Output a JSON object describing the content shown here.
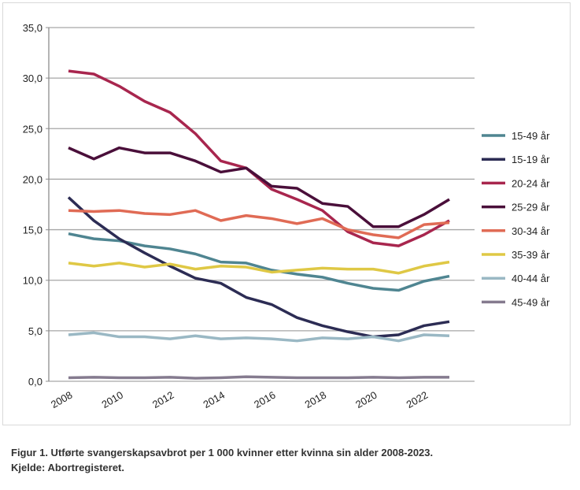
{
  "chart_data": {
    "type": "line",
    "title": "",
    "xlabel": "",
    "ylabel": "",
    "x": [
      2008,
      2009,
      2010,
      2011,
      2012,
      2013,
      2014,
      2015,
      2016,
      2017,
      2018,
      2019,
      2020,
      2021,
      2022,
      2023
    ],
    "x_ticks": [
      "2008",
      "2010",
      "2012",
      "2014",
      "2016",
      "2018",
      "2020",
      "2022"
    ],
    "ylim": [
      0,
      35
    ],
    "y_ticks": [
      "0,0",
      "5,0",
      "10,0",
      "15,0",
      "20,0",
      "25,0",
      "30,0",
      "35,0"
    ],
    "grid": "horizontal",
    "legend_position": "right",
    "series": [
      {
        "name": "15-49 år",
        "color": "#4f8591",
        "values": [
          14.6,
          14.1,
          13.9,
          13.4,
          13.1,
          12.6,
          11.8,
          11.7,
          11.0,
          10.6,
          10.3,
          9.7,
          9.2,
          9.0,
          9.9,
          10.4
        ]
      },
      {
        "name": "15-19 år",
        "color": "#2c2c54",
        "values": [
          18.2,
          15.9,
          14.1,
          12.7,
          11.4,
          10.2,
          9.7,
          8.3,
          7.6,
          6.3,
          5.5,
          4.9,
          4.4,
          4.6,
          5.5,
          5.9
        ]
      },
      {
        "name": "20-24 år",
        "color": "#a8264e",
        "values": [
          30.7,
          30.4,
          29.2,
          27.7,
          26.6,
          24.5,
          21.8,
          21.1,
          19.0,
          18.0,
          16.9,
          14.8,
          13.7,
          13.4,
          14.5,
          15.9
        ]
      },
      {
        "name": "25-29 år",
        "color": "#4a0f3a",
        "values": [
          23.1,
          22.0,
          23.1,
          22.6,
          22.6,
          21.8,
          20.7,
          21.1,
          19.3,
          19.1,
          17.6,
          17.3,
          15.3,
          15.3,
          16.5,
          18.0
        ]
      },
      {
        "name": "30-34 år",
        "color": "#e06b55",
        "values": [
          16.9,
          16.8,
          16.9,
          16.6,
          16.5,
          16.9,
          15.9,
          16.4,
          16.1,
          15.6,
          16.1,
          15.0,
          14.5,
          14.2,
          15.5,
          15.7
        ]
      },
      {
        "name": "35-39 år",
        "color": "#dfc845",
        "values": [
          11.7,
          11.4,
          11.7,
          11.3,
          11.6,
          11.1,
          11.4,
          11.3,
          10.8,
          11.0,
          11.2,
          11.1,
          11.1,
          10.7,
          11.4,
          11.8
        ]
      },
      {
        "name": "40-44 år",
        "color": "#9ab8c4",
        "values": [
          4.6,
          4.8,
          4.4,
          4.4,
          4.2,
          4.5,
          4.2,
          4.3,
          4.2,
          4.0,
          4.3,
          4.2,
          4.4,
          4.0,
          4.6,
          4.5
        ]
      },
      {
        "name": "45-49 år",
        "color": "#857b8f",
        "values": [
          0.35,
          0.4,
          0.35,
          0.35,
          0.4,
          0.3,
          0.35,
          0.45,
          0.4,
          0.35,
          0.35,
          0.35,
          0.4,
          0.35,
          0.4,
          0.4
        ]
      }
    ]
  },
  "caption": {
    "line1": "Figur 1. Utførte svangerskapsavbrot per 1 000 kvinner etter kvinna sin alder 2008-2023.",
    "line2": "Kjelde: Abortregisteret."
  }
}
